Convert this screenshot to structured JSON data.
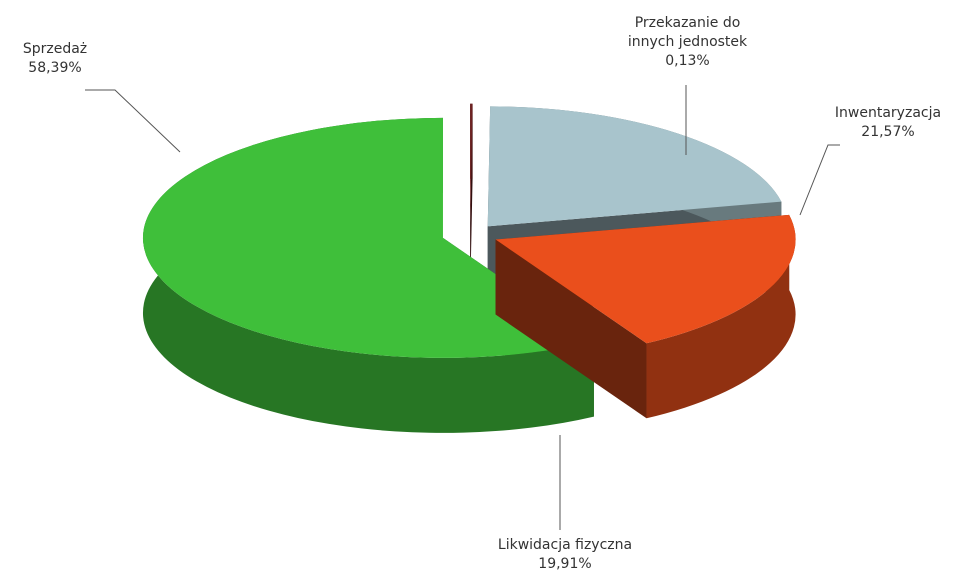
{
  "chart_data": {
    "type": "pie3d",
    "categories": [
      "Sprzedaż",
      "Przekazanie do innych jednostek",
      "Inwentaryzacja",
      "Likwidacja fizyczna"
    ],
    "values": [
      58.39,
      0.13,
      21.57,
      19.91
    ],
    "value_labels": [
      "58,39%",
      "0,13%",
      "21,57%",
      "19,91%"
    ],
    "colors": [
      "#3fbf3a",
      "#6e2222",
      "#a8c4cc",
      "#ea4f1c"
    ]
  }
}
